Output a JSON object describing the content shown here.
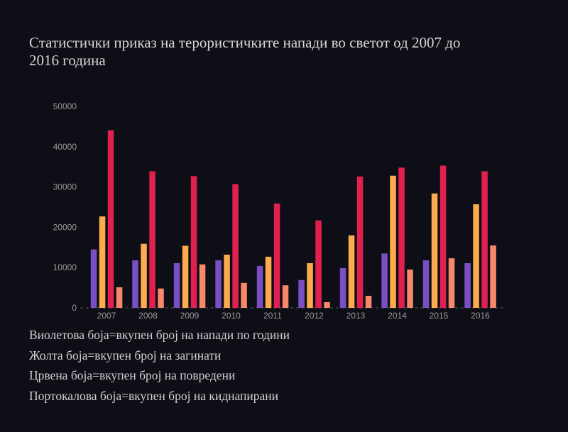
{
  "chart_data": {
    "type": "bar",
    "title": "Статистички приказ на терористичките напади во светот од 2007 до 2016 година",
    "xlabel": "",
    "ylabel": "",
    "ylim": [
      0,
      50000
    ],
    "yticks": [
      "0",
      "10000",
      "20000",
      "30000",
      "40000",
      "50000"
    ],
    "categories": [
      "2007",
      "2008",
      "2009",
      "2010",
      "2011",
      "2012",
      "2013",
      "2014",
      "2015",
      "2016"
    ],
    "grid": false,
    "series": [
      {
        "name": "Виолетова боја",
        "color": "#7b4fc4",
        "values": [
          14500,
          11800,
          11100,
          11800,
          10400,
          6900,
          9900,
          13500,
          11800,
          11100
        ]
      },
      {
        "name": "Жолта боја",
        "color": "#fdab4c",
        "values": [
          22700,
          15900,
          15400,
          13200,
          12700,
          11100,
          18000,
          32800,
          28400,
          25700
        ]
      },
      {
        "name": "Црвена боја",
        "color": "#e0204f",
        "values": [
          44100,
          33900,
          32700,
          30700,
          25900,
          21700,
          32600,
          34800,
          35300,
          33900
        ]
      },
      {
        "name": "Портокалова боја",
        "color": "#f7886a",
        "values": [
          5100,
          4800,
          10800,
          6200,
          5600,
          1400,
          3000,
          9500,
          12300,
          15500
        ]
      }
    ],
    "legend_lines": [
      "Виолетова боја=вкупен број на напади по години",
      "Жолта боја=вкупен број на загинати",
      "Црвена боја=вкупен број на повредени",
      "Портокалова боја=вкупен број на киднапирани"
    ]
  },
  "title_line1": "Статистички приказ на терористичките напади во светот од 2007 до",
  "title_line2": "2016 година"
}
